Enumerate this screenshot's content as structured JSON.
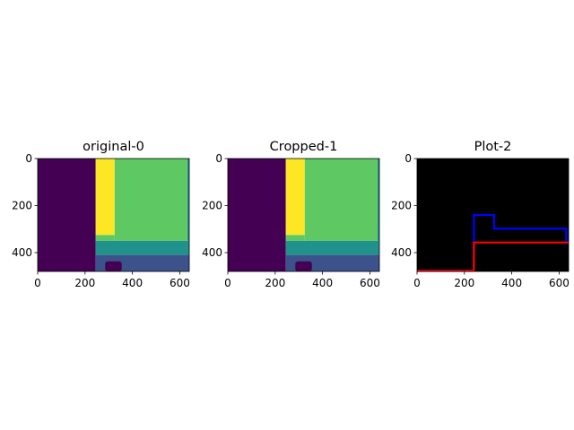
{
  "chart_data": [
    {
      "type": "heatmap",
      "title": "original-0",
      "xticks": [
        "0",
        "200",
        "400",
        "600"
      ],
      "yticks": [
        "0",
        "200",
        "400"
      ],
      "xlim": [
        0,
        640
      ],
      "ylim": [
        480,
        0
      ],
      "colormap": "viridis",
      "regions": [
        {
          "x0": 0,
          "x1": 245,
          "y0": 0,
          "y1": 480,
          "color": "#440154"
        },
        {
          "x0": 245,
          "x1": 325,
          "y0": 0,
          "y1": 325,
          "color": "#fde725"
        },
        {
          "x0": 325,
          "x1": 632,
          "y0": 0,
          "y1": 350,
          "color": "#5ec962"
        },
        {
          "x0": 632,
          "x1": 640,
          "y0": 0,
          "y1": 350,
          "color": "#21918c"
        },
        {
          "x0": 245,
          "x1": 325,
          "y0": 325,
          "y1": 350,
          "color": "#5ec962"
        },
        {
          "x0": 245,
          "x1": 640,
          "y0": 350,
          "y1": 410,
          "color": "#21918c"
        },
        {
          "x0": 245,
          "x1": 640,
          "y0": 410,
          "y1": 480,
          "color": "#3b528b"
        },
        {
          "x0": 285,
          "x1": 355,
          "y0": 437,
          "y1": 480,
          "color": "#440154",
          "rounded": true
        }
      ]
    },
    {
      "type": "heatmap",
      "title": "Cropped-1",
      "xticks": [
        "0",
        "200",
        "400",
        "600"
      ],
      "yticks": [
        "0",
        "200",
        "400"
      ],
      "xlim": [
        0,
        640
      ],
      "ylim": [
        480,
        0
      ],
      "colormap": "viridis",
      "regions": [
        {
          "x0": 0,
          "x1": 245,
          "y0": 0,
          "y1": 480,
          "color": "#440154"
        },
        {
          "x0": 245,
          "x1": 325,
          "y0": 0,
          "y1": 325,
          "color": "#fde725"
        },
        {
          "x0": 325,
          "x1": 632,
          "y0": 0,
          "y1": 350,
          "color": "#5ec962"
        },
        {
          "x0": 632,
          "x1": 640,
          "y0": 0,
          "y1": 350,
          "color": "#21918c"
        },
        {
          "x0": 245,
          "x1": 325,
          "y0": 325,
          "y1": 350,
          "color": "#5ec962"
        },
        {
          "x0": 245,
          "x1": 640,
          "y0": 350,
          "y1": 410,
          "color": "#21918c"
        },
        {
          "x0": 245,
          "x1": 640,
          "y0": 410,
          "y1": 480,
          "color": "#3b528b"
        },
        {
          "x0": 285,
          "x1": 355,
          "y0": 437,
          "y1": 480,
          "color": "#440154",
          "rounded": true
        }
      ]
    },
    {
      "type": "line",
      "title": "Plot-2",
      "xticks": [
        "0",
        "200",
        "400",
        "600"
      ],
      "yticks": [
        "0",
        "200",
        "400"
      ],
      "xlim": [
        0,
        640
      ],
      "ylim": [
        480,
        0
      ],
      "background": "#000000",
      "series": [
        {
          "color": "#0000ff",
          "x": [
            0,
            240,
            240,
            325,
            325,
            630,
            630,
            640
          ],
          "y": [
            477,
            477,
            240,
            240,
            298,
            298,
            357,
            357
          ]
        },
        {
          "color": "#ff0000",
          "x": [
            0,
            240,
            240,
            640
          ],
          "y": [
            477,
            477,
            357,
            357
          ]
        }
      ]
    }
  ]
}
